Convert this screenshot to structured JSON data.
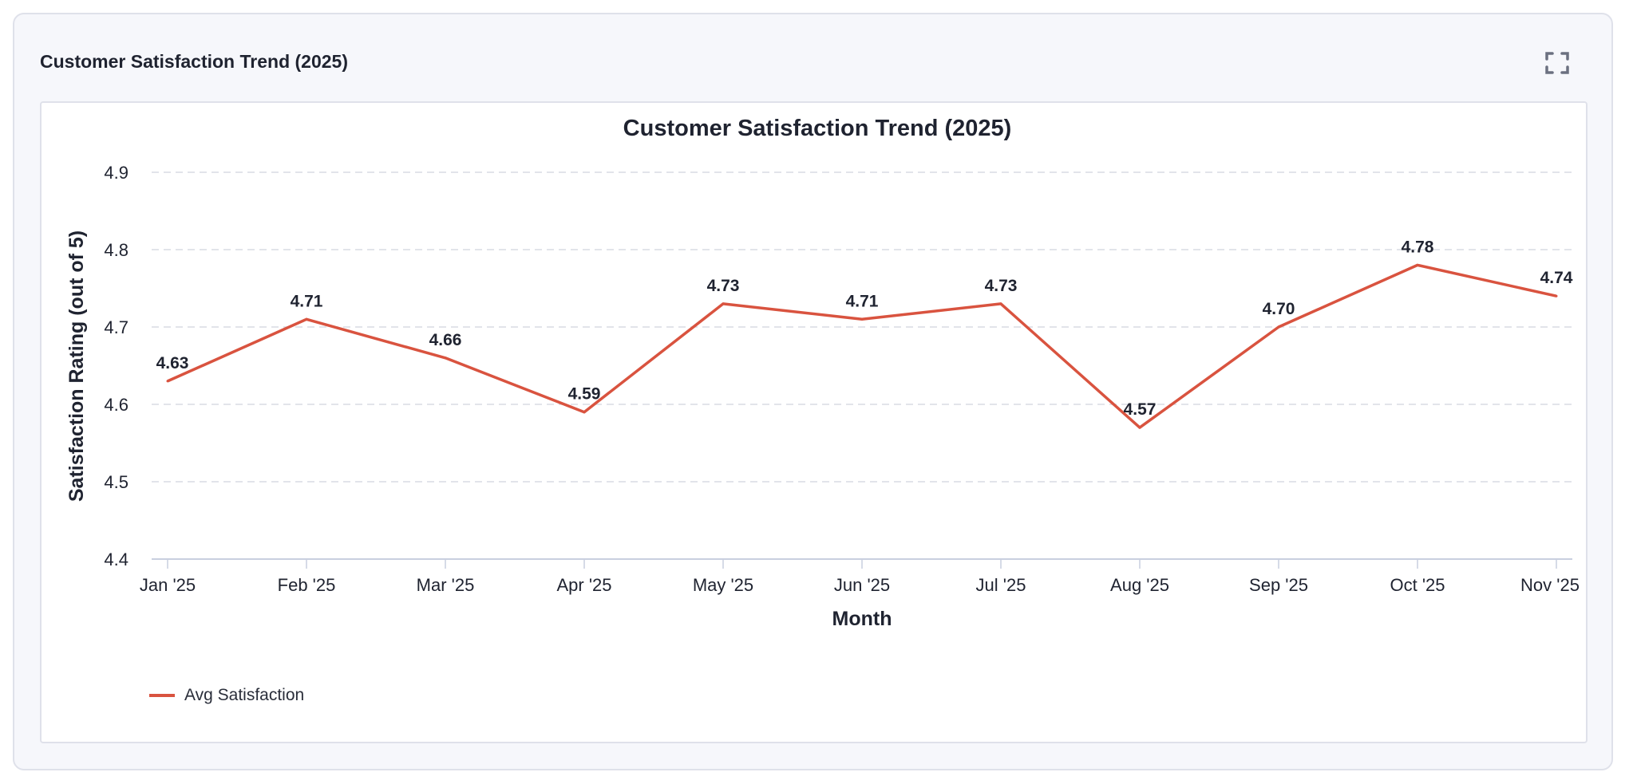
{
  "panel": {
    "title": "Customer Satisfaction Trend (2025)",
    "expand_icon": "expand-icon"
  },
  "colors": {
    "series": "#d9533f",
    "grid": "#d8dbe4",
    "axis": "#c9cfdf",
    "text": "#1f2330"
  },
  "chart_data": {
    "type": "line",
    "title": "Customer Satisfaction Trend (2025)",
    "xlabel": "Month",
    "ylabel": "Satisfaction Rating (out of 5)",
    "categories": [
      "Jan '25",
      "Feb '25",
      "Mar '25",
      "Apr '25",
      "May '25",
      "Jun '25",
      "Jul '25",
      "Aug '25",
      "Sep '25",
      "Oct '25",
      "Nov '25"
    ],
    "series": [
      {
        "name": "Avg Satisfaction",
        "values": [
          4.63,
          4.71,
          4.66,
          4.59,
          4.73,
          4.71,
          4.73,
          4.57,
          4.7,
          4.78,
          4.74
        ]
      }
    ],
    "data_labels": [
      "4.63",
      "4.71",
      "4.66",
      "4.59",
      "4.73",
      "4.71",
      "4.73",
      "4.57",
      "4.70",
      "4.78",
      "4.74"
    ],
    "ylim": [
      4.4,
      4.9
    ],
    "yticks": [
      "4.4",
      "4.5",
      "4.6",
      "4.7",
      "4.8",
      "4.9"
    ],
    "grid": "horizontal dashed",
    "legend": "bottom-left"
  }
}
